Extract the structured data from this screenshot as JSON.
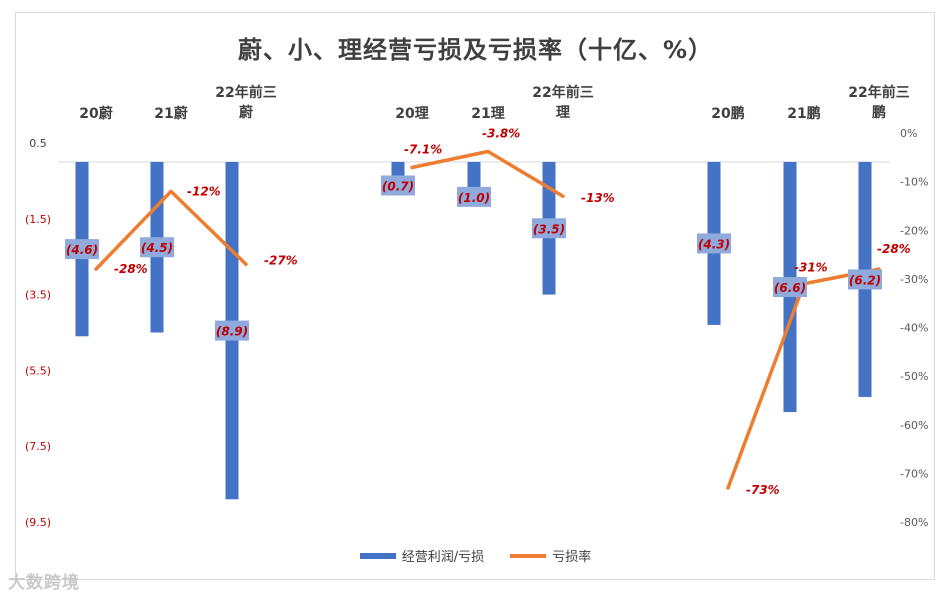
{
  "chart_data": {
    "type": "bar",
    "title": "蔚、小、理经营亏损及亏损率（十亿、%）",
    "groups": [
      {
        "name": "蔚",
        "categories": [
          "20蔚",
          "21蔚",
          "22年前三蔚"
        ]
      },
      {
        "name": "理",
        "categories": [
          "20理",
          "21理",
          "22年前三理"
        ]
      },
      {
        "name": "鹏",
        "categories": [
          "20鹏",
          "21鹏",
          "22年前三鹏"
        ]
      }
    ],
    "category_labels": [
      [
        "20蔚"
      ],
      [
        "21蔚"
      ],
      [
        "22年前三",
        "蔚"
      ],
      [
        "20理"
      ],
      [
        "21理"
      ],
      [
        "22年前三",
        "理"
      ],
      [
        "20鹏"
      ],
      [
        "21鹏"
      ],
      [
        "22年前三",
        "鹏"
      ]
    ],
    "series": [
      {
        "name": "经营利润/亏损",
        "type": "bar",
        "axis": "left",
        "values": [
          -4.6,
          -4.5,
          -8.9,
          -0.7,
          -1.0,
          -3.5,
          -4.3,
          -6.6,
          -6.2
        ],
        "labels": [
          "(4.6)",
          "(4.5)",
          "(8.9)",
          "(0.7)",
          "(1.0)",
          "(3.5)",
          "(4.3)",
          "(6.6)",
          "(6.2)"
        ]
      },
      {
        "name": "亏损率",
        "type": "line",
        "axis": "right",
        "values": [
          -28,
          -12,
          -27,
          -7.1,
          -3.8,
          -13,
          -73,
          -31,
          -28
        ],
        "labels": [
          "-28%",
          "-12%",
          "-27%",
          "-7.1%",
          "-3.8%",
          "-13%",
          "-73%",
          "-31%",
          "-28%"
        ]
      }
    ],
    "y_left": {
      "min": -9.5,
      "max": 0.5,
      "ticks": [
        0.5,
        -1.5,
        -3.5,
        -5.5,
        -7.5,
        -9.5
      ],
      "tick_labels": [
        "0.5",
        "(1.5)",
        "(3.5)",
        "(5.5)",
        "(7.5)",
        "(9.5)"
      ]
    },
    "y_right": {
      "min": -80,
      "max": 0,
      "ticks": [
        0,
        -10,
        -20,
        -30,
        -40,
        -50,
        -60,
        -70,
        -80
      ],
      "tick_labels": [
        "0%",
        "-10%",
        "-20%",
        "-30%",
        "-40%",
        "-50%",
        "-60%",
        "-70%",
        "-80%"
      ]
    },
    "colors": {
      "bar": "#4472c4",
      "line": "#ed7d31",
      "bar_label_bg": "#8faadc",
      "label_text": "#c00000",
      "left_tick": "#c00000",
      "right_tick": "#595959"
    },
    "legend": {
      "position": "bottom"
    }
  },
  "watermark": "大数跨境"
}
